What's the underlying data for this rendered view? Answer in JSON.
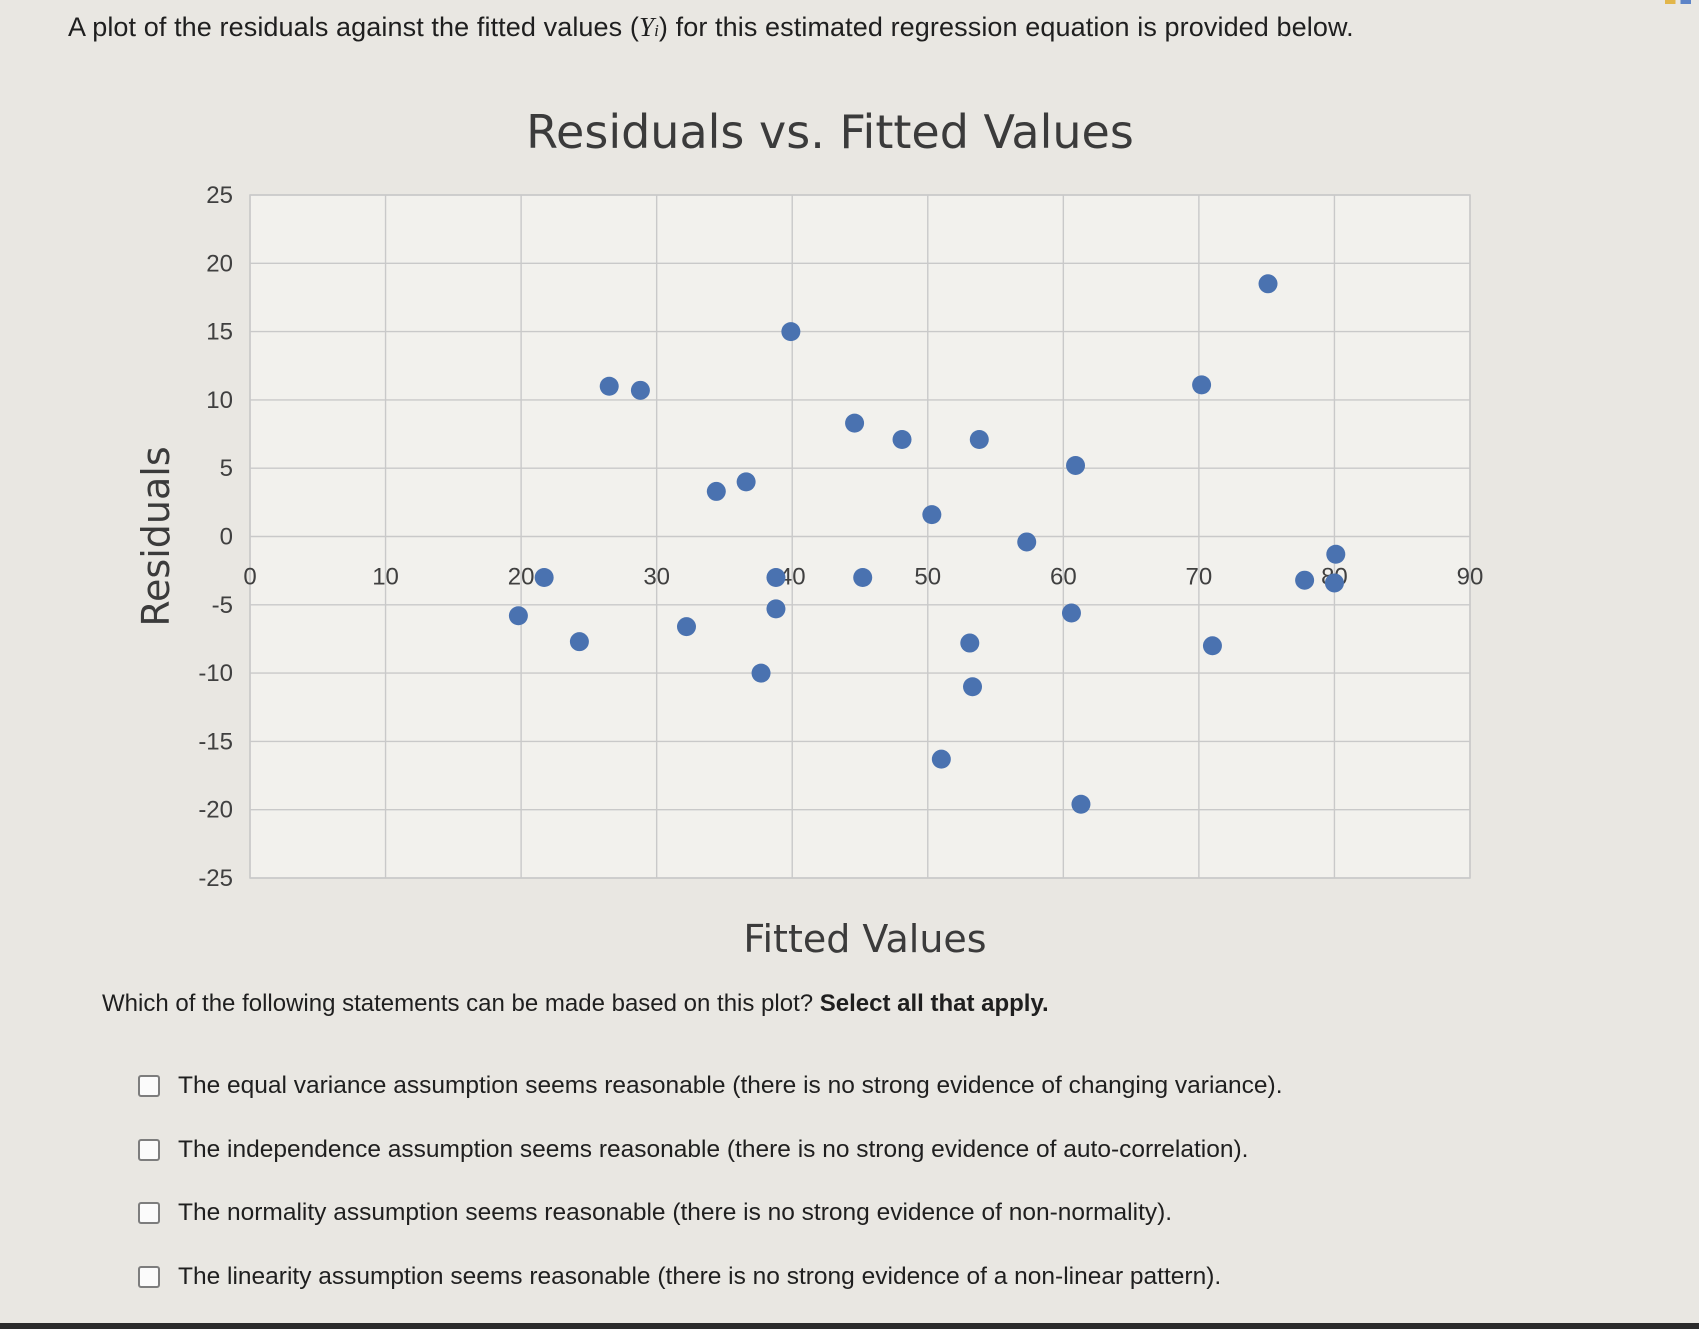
{
  "intro": {
    "prefix": "A plot of the residuals against the fitted values (",
    "yhat": "Y",
    "sub": "i",
    "suffix": ") for this estimated regression equation is provided below."
  },
  "question": {
    "text": "Which of the following statements can be made based on this plot? ",
    "emphasis": "Select all that apply."
  },
  "options": [
    {
      "label": "The equal variance assumption seems reasonable (there is no strong evidence of changing variance)."
    },
    {
      "label": "The independence assumption seems reasonable (there is no strong evidence of auto-correlation)."
    },
    {
      "label": "The normality assumption seems reasonable (there is no strong evidence of non-normality)."
    },
    {
      "label": "The linearity assumption seems reasonable (there is no strong evidence of a non-linear pattern)."
    }
  ],
  "colors": {
    "point": "#4a72b0",
    "grid": "#c9c9c9",
    "plot_bg": "#f2f1ed"
  },
  "chart_data": {
    "type": "scatter",
    "title": "Residuals vs. Fitted Values",
    "xlabel": "Fitted Values",
    "ylabel": "Residuals",
    "xlim": [
      0,
      90
    ],
    "ylim": [
      -25,
      25
    ],
    "x_ticks": [
      "0",
      "10",
      "20",
      "30",
      "40",
      "50",
      "60",
      "70",
      "80",
      "90"
    ],
    "y_ticks": [
      "25",
      "20",
      "15",
      "10",
      "5",
      "0",
      "-5",
      "-10",
      "-15",
      "-20",
      "-25"
    ],
    "grid": true,
    "points": [
      {
        "x": 19.8,
        "y": -5.8
      },
      {
        "x": 21.7,
        "y": -3
      },
      {
        "x": 24.3,
        "y": -7.7
      },
      {
        "x": 26.5,
        "y": 11
      },
      {
        "x": 28.8,
        "y": 10.7
      },
      {
        "x": 32.2,
        "y": -6.6
      },
      {
        "x": 34.4,
        "y": 3.3
      },
      {
        "x": 36.6,
        "y": 4
      },
      {
        "x": 37.7,
        "y": -10
      },
      {
        "x": 38.8,
        "y": -3
      },
      {
        "x": 38.8,
        "y": -5.3
      },
      {
        "x": 39.9,
        "y": 15
      },
      {
        "x": 44.6,
        "y": 8.3
      },
      {
        "x": 45.2,
        "y": -3
      },
      {
        "x": 48.1,
        "y": 7.1
      },
      {
        "x": 50.3,
        "y": 1.6
      },
      {
        "x": 51.0,
        "y": -16.3
      },
      {
        "x": 53.1,
        "y": -7.8
      },
      {
        "x": 53.3,
        "y": -11
      },
      {
        "x": 53.8,
        "y": 7.1
      },
      {
        "x": 57.3,
        "y": -0.4
      },
      {
        "x": 60.6,
        "y": -5.6
      },
      {
        "x": 60.9,
        "y": 5.2
      },
      {
        "x": 61.3,
        "y": -19.6
      },
      {
        "x": 70.2,
        "y": 11.1
      },
      {
        "x": 71.0,
        "y": -8
      },
      {
        "x": 75.1,
        "y": 18.5
      },
      {
        "x": 77.8,
        "y": -3.2
      },
      {
        "x": 80.1,
        "y": -1.3
      },
      {
        "x": 80.0,
        "y": -3.4
      }
    ]
  }
}
